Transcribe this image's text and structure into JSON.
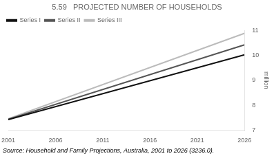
{
  "chart_data": {
    "type": "line",
    "title": "5.59   PROJECTED NUMBER OF HOUSEHOLDS",
    "ylabel": "million",
    "annotations": [
      "Source: Household and Family Projections, Australia, 2001 to 2026 (3236.0)."
    ],
    "x": [
      2001,
      2026
    ],
    "series": [
      {
        "name": "Series I",
        "color": "#111111",
        "values": [
          7.42,
          10.02
        ]
      },
      {
        "name": "Series II",
        "color": "#555555",
        "values": [
          7.44,
          10.42
        ]
      },
      {
        "name": "Series III",
        "color": "#bbbbbb",
        "values": [
          7.46,
          10.88
        ]
      }
    ],
    "xlim": [
      2001,
      2026
    ],
    "xticks": [
      2001,
      2006,
      2011,
      2016,
      2021,
      2026
    ],
    "ylim": [
      7,
      11
    ],
    "yticks": [
      7,
      8,
      9,
      10,
      11
    ],
    "grid": false,
    "legend": "upper left"
  }
}
